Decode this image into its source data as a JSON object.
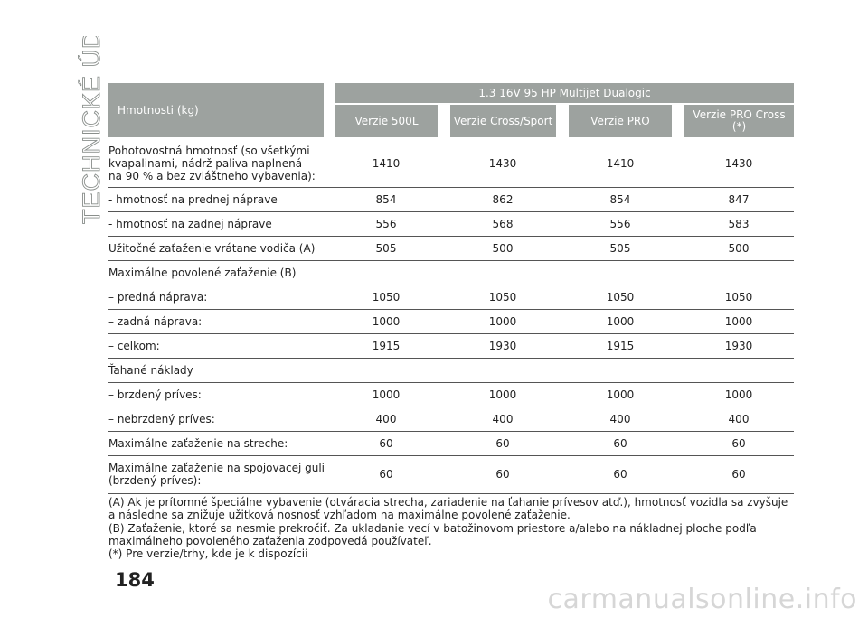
{
  "side_title": "TECHNICKÉ ÚDAJE",
  "page_number": "184",
  "watermark": "carmanualsonline.info",
  "table": {
    "header_label": "Hmotnosti (kg)",
    "engine": "1.3 16V 95 HP Multijet Dualogic",
    "columns": [
      "Verzie 500L",
      "Verzie Cross/Sport",
      "Verzie PRO",
      "Verzie PRO Cross (*)"
    ],
    "rows": [
      {
        "label": "Pohotovostná hmotnosť (so všetkými kvapalinami, nádrž paliva naplnená na 90 % a bez zvláštneho vybavenia):",
        "values": [
          "1410",
          "1430",
          "1410",
          "1430"
        ]
      },
      {
        "label": "- hmotnosť na prednej nápravе",
        "values": [
          "854",
          "862",
          "854",
          "847"
        ]
      },
      {
        "label": "- hmotnosť na zadnej náprave",
        "values": [
          "556",
          "568",
          "556",
          "583"
        ]
      },
      {
        "label": "Užitočné zaťaženie vrátane vodiča (A)",
        "values": [
          "505",
          "500",
          "505",
          "500"
        ]
      },
      {
        "label": "Maximálne povolené zaťaženie (B)",
        "values": [
          "",
          "",
          "",
          ""
        ]
      },
      {
        "label": "– predná náprava:",
        "values": [
          "1050",
          "1050",
          "1050",
          "1050"
        ]
      },
      {
        "label": "– zadná náprava:",
        "values": [
          "1000",
          "1000",
          "1000",
          "1000"
        ]
      },
      {
        "label": "– celkom:",
        "values": [
          "1915",
          "1930",
          "1915",
          "1930"
        ]
      },
      {
        "label": "Ťahané náklady",
        "values": [
          "",
          "",
          "",
          ""
        ]
      },
      {
        "label": "– brzdený príves:",
        "values": [
          "1000",
          "1000",
          "1000",
          "1000"
        ]
      },
      {
        "label": "– nebrzdený príves:",
        "values": [
          "400",
          "400",
          "400",
          "400"
        ]
      },
      {
        "label": "Maximálne zaťaženie na streche:",
        "values": [
          "60",
          "60",
          "60",
          "60"
        ]
      },
      {
        "label": "Maximálne zaťaženie na spojovacej guli (brzdený príves):",
        "values": [
          "60",
          "60",
          "60",
          "60"
        ]
      }
    ]
  },
  "notes": [
    "(A) Ak je prítomné špeciálne vybavenie (otváracia strecha, zariadenie na ťahanie prívesov atď.), hmotnosť vozidla sa zvyšuje a následne sa znižuje užitková nosnosť vzhľadom na maximálne povolené zaťaženie.",
    "(B) Zaťaženie, ktoré sa nesmie prekročiť. Za ukladanie vecí v batožinovom priestore a/alebo na nákladnej ploche podľa maximálneho povoleného zaťaženia zodpovedá používateľ.",
    "(*) Pre verzie/trhy, kde je k dispozícii"
  ]
}
